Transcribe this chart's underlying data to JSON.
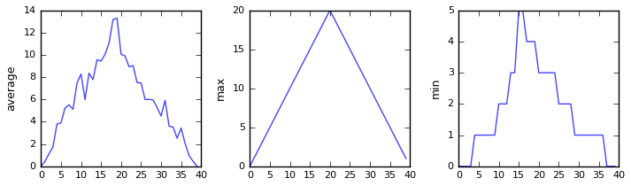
{
  "avg_data": [
    0,
    0.45,
    1.12,
    1.75,
    3.8,
    3.9,
    5.23,
    5.52,
    5.12,
    7.48,
    8.28,
    6.0,
    8.36,
    7.78,
    9.56,
    9.44,
    10.05,
    11.06,
    13.18,
    13.3,
    10.06,
    9.9,
    8.93,
    9.04,
    7.52,
    7.48,
    6.0,
    6.0,
    5.96,
    5.28,
    4.52,
    5.92,
    3.6,
    3.52,
    2.52,
    3.44,
    2.04,
    0.96,
    0.44,
    0
  ],
  "max_data": [
    0,
    1,
    2,
    3,
    4,
    5,
    6,
    7,
    8,
    9,
    10,
    11,
    12,
    13,
    14,
    15,
    16,
    17,
    18,
    19,
    20,
    19,
    18,
    17,
    16,
    15,
    14,
    13,
    12,
    11,
    10,
    9,
    8,
    7,
    6,
    5,
    4,
    3,
    2,
    1
  ],
  "min_data": [
    0,
    0,
    0,
    0,
    1,
    1,
    1,
    1,
    1,
    1,
    2,
    2,
    2,
    3,
    3,
    5,
    5,
    4,
    4,
    4,
    3,
    3,
    3,
    3,
    3,
    2,
    2,
    2,
    2,
    1,
    1,
    1,
    1,
    1,
    1,
    1,
    1,
    0,
    0,
    0
  ],
  "line_color": "#4444ff",
  "fig_facecolor": "#ffffff",
  "ylabel1": "average",
  "ylabel2": "max",
  "ylabel3": "min",
  "xlim": [
    0,
    40
  ],
  "ylim1": [
    0,
    14
  ],
  "ylim2": [
    0,
    20
  ],
  "ylim3": [
    0,
    5
  ],
  "xticks": [
    0,
    5,
    10,
    15,
    20,
    25,
    30,
    35,
    40
  ],
  "yticks1": [
    0,
    2,
    4,
    6,
    8,
    10,
    12,
    14
  ],
  "yticks2": [
    0,
    5,
    10,
    15,
    20
  ],
  "yticks3": [
    0,
    1,
    2,
    3,
    4,
    5
  ]
}
